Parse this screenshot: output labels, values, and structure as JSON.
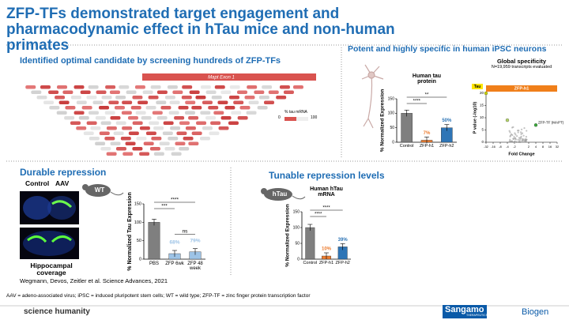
{
  "header": {
    "title": "ZFP-TFs demonstrated target engagement and pharmacodynamic effect in hTau mice and non-human primates"
  },
  "screening": {
    "heading": "Identified optimal candidate by screening hundreds of ZFP-TFs",
    "exon_label": "Mapt Exon 1",
    "legend_title": "% tau mRNA",
    "legend_min": "0",
    "legend_max": "100"
  },
  "ipsc": {
    "heading": "Potent and highly specific in human iPSC neurons",
    "chart": {
      "type": "bar",
      "title": "Human tau protein",
      "ylabel": "% Normalized Expression",
      "categories": [
        "Control",
        "ZFP-h1",
        "ZFP-h2"
      ],
      "values": [
        100,
        7,
        50
      ],
      "value_labels": [
        null,
        "7%",
        "50%"
      ],
      "colors": [
        "#7f7f7f",
        "#ed7d31",
        "#2e75b6"
      ],
      "ylim": [
        0,
        150
      ],
      "yticks": [
        0,
        50,
        100,
        150
      ],
      "significance": [
        "****",
        "**"
      ]
    },
    "volcano": {
      "type": "scatter",
      "title": "Global specificity",
      "subtitle": "N=19,959 transcripts evaluated",
      "panel_label": "ZFP-h1",
      "xlabel": "Fold Change",
      "ylabel": "P value (-log10)",
      "x": [
        -32,
        -4,
        4
      ],
      "y": [
        20,
        9,
        7
      ],
      "labels": [
        "Tau",
        null,
        "ZFP-TF (MAPT)"
      ],
      "colors": [
        "#c8d400",
        "#b5d56a",
        "#3aa83a"
      ],
      "xlim": [
        -32,
        32
      ],
      "xticks": [
        -32,
        -16,
        -8,
        -4,
        -2,
        2,
        4,
        8,
        16,
        32
      ],
      "ylim": [
        0,
        20
      ],
      "yticks": [
        0,
        5,
        10,
        15,
        20
      ]
    }
  },
  "durable": {
    "heading": "Durable repression",
    "image_labels": [
      "Control",
      "AAV"
    ],
    "image_caption": "Hippocampal coverage",
    "model": "WT",
    "chart": {
      "type": "bar",
      "ylabel": "% Normalized Tau Expression",
      "categories": [
        "PBS",
        "ZFP 6wk",
        "ZFP 48 week"
      ],
      "values": [
        100,
        15,
        20
      ],
      "colors": [
        "#7f7f7f",
        "#9dc3e6",
        "#9dc3e6"
      ],
      "ylim": [
        0,
        150
      ],
      "yticks": [
        0,
        50,
        100,
        150
      ],
      "annotations": [
        null,
        "68%",
        "79%"
      ],
      "significance": [
        "***",
        "****"
      ],
      "between": "ns"
    }
  },
  "tunable": {
    "heading": "Tunable repression levels",
    "model": "hTau",
    "chart": {
      "type": "bar",
      "title": "Human hTau mRNA",
      "ylabel": "% Normalized Expression",
      "categories": [
        "Control",
        "ZFP-h1",
        "ZFP-h2"
      ],
      "values": [
        100,
        10,
        39
      ],
      "value_labels": [
        null,
        "10%",
        "39%"
      ],
      "colors": [
        "#7f7f7f",
        "#ed7d31",
        "#2e75b6"
      ],
      "ylim": [
        0,
        150
      ],
      "yticks": [
        0,
        50,
        100,
        150
      ],
      "significance": [
        "****",
        "****"
      ]
    }
  },
  "citation": "Wegmann, Devos, Zeitler et al. Science Advances, 2021",
  "footnote": "AAV = adeno-associated virus; iPSC = induced pluripotent stem cells; WT = wild type; ZFP-TF = zinc finger protein transcription factor",
  "logos": {
    "left": "science humanity",
    "sangamo": "Sangamo",
    "sangamo_sub": "THERAPEUTICS",
    "biogen": "Biogen"
  }
}
